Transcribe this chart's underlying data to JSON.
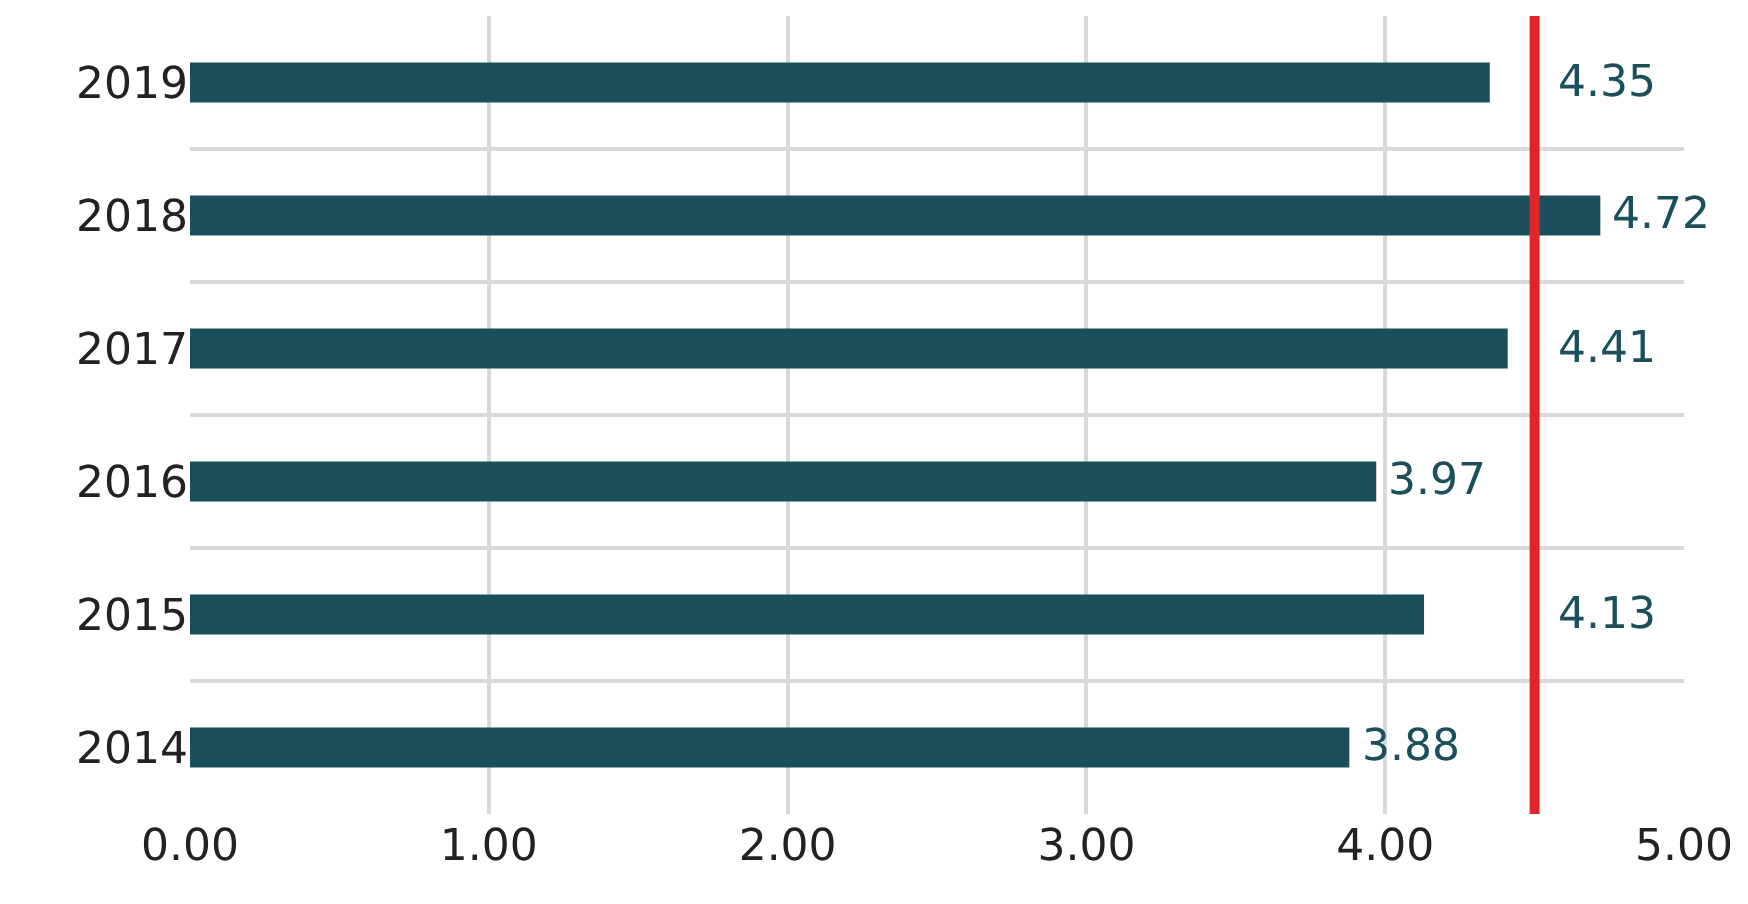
{
  "chart_data": {
    "type": "bar",
    "orientation": "horizontal",
    "categories": [
      "2019",
      "2018",
      "2017",
      "2016",
      "2015",
      "2014"
    ],
    "values": [
      4.35,
      4.72,
      4.41,
      3.97,
      4.13,
      3.88
    ],
    "color": "#1b4f5b",
    "data_labels": true,
    "xlim": [
      0,
      5
    ],
    "xticks": [
      {
        "value": 0,
        "label": "0.00"
      },
      {
        "value": 1,
        "label": "1.00"
      },
      {
        "value": 2,
        "label": "2.00"
      },
      {
        "value": 3,
        "label": "3.00"
      },
      {
        "value": 4,
        "label": "4.00"
      },
      {
        "value": 5,
        "label": "5.00"
      }
    ],
    "ref_lines": [
      {
        "axis": "x",
        "value": 4.5,
        "color": "#e0262b",
        "line_style": "solid"
      }
    ],
    "grid": "x",
    "legend": false
  }
}
